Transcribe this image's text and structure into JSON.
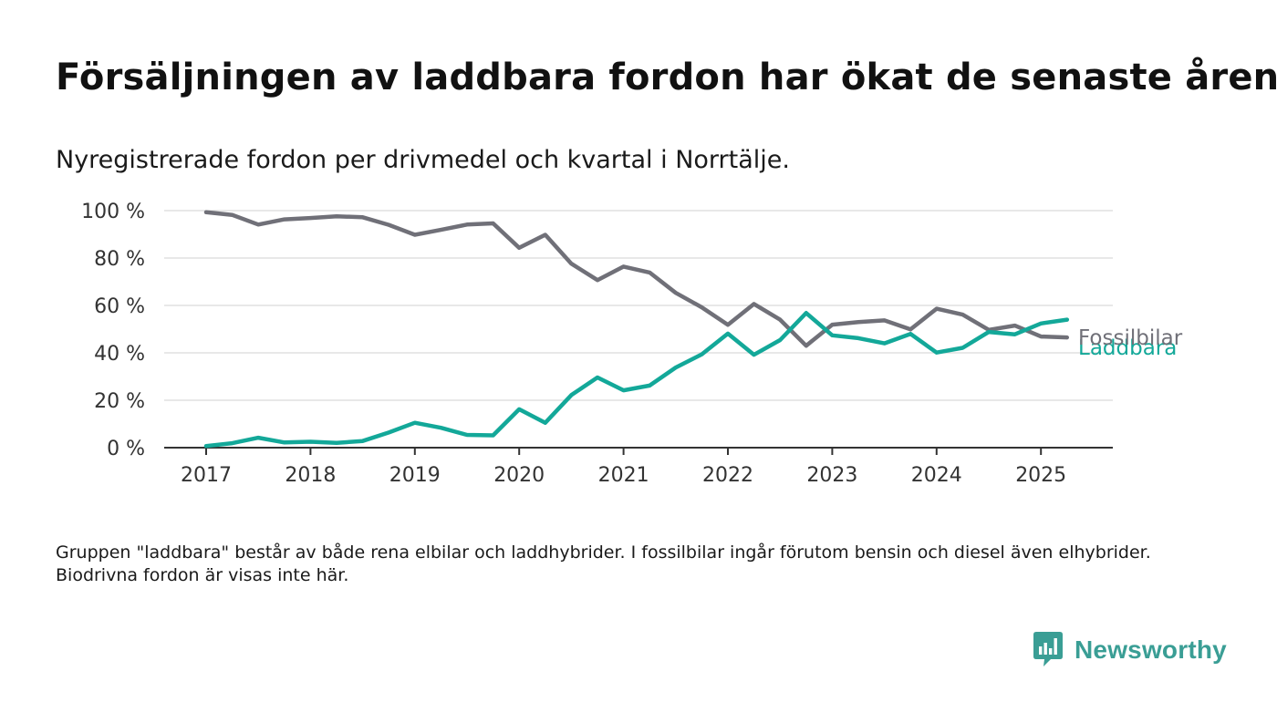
{
  "header": {
    "title": "Försäljningen av laddbara fordon har ökat de senaste åren",
    "subtitle": "Nyregistrerade fordon per drivmedel och kvartal i Norrtälje."
  },
  "footnote": "Gruppen \"laddbara\" består av både rena elbilar och laddhybrider. I fossilbilar ingår förutom bensin och diesel även elhybrider. Biodrivna fordon är visas inte här.",
  "brand": {
    "name": "Newsworthy",
    "icon": "newsworthy-chart-icon",
    "color": "#3a9e95"
  },
  "chart_data": {
    "type": "line",
    "x_tick_labels": [
      "2017",
      "2018",
      "2019",
      "2020",
      "2021",
      "2022",
      "2023",
      "2024",
      "2025"
    ],
    "y_tick_labels": [
      "0 %",
      "20 %",
      "40 %",
      "60 %",
      "80 %",
      "100 %"
    ],
    "ylim": [
      0,
      100
    ],
    "grid": true,
    "x": [
      "2017-Q1",
      "2017-Q2",
      "2017-Q3",
      "2017-Q4",
      "2018-Q1",
      "2018-Q2",
      "2018-Q3",
      "2018-Q4",
      "2019-Q1",
      "2019-Q2",
      "2019-Q3",
      "2019-Q4",
      "2020-Q1",
      "2020-Q2",
      "2020-Q3",
      "2020-Q4",
      "2021-Q1",
      "2021-Q2",
      "2021-Q3",
      "2021-Q4",
      "2022-Q1",
      "2022-Q2",
      "2022-Q3",
      "2022-Q4",
      "2023-Q1",
      "2023-Q2",
      "2023-Q3",
      "2023-Q4",
      "2024-Q1",
      "2024-Q2",
      "2024-Q3",
      "2024-Q4",
      "2025-Q1",
      "2025-Q2"
    ],
    "series": [
      {
        "name": "Fossilbilar",
        "color": "#707078",
        "values": [
          99.3,
          98.2,
          94.1,
          96.3,
          96.9,
          97.6,
          97.2,
          94.0,
          89.8,
          91.9,
          94.1,
          94.6,
          84.3,
          89.8,
          77.6,
          70.7,
          76.4,
          73.9,
          65.3,
          59.2,
          51.8,
          60.6,
          54.0,
          43.0,
          51.9,
          53.0,
          53.7,
          49.9,
          58.6,
          56.1,
          49.7,
          51.5,
          46.9,
          46.5
        ]
      },
      {
        "name": "Laddbara",
        "color": "#13a899",
        "values": [
          0.7,
          1.9,
          4.2,
          2.2,
          2.5,
          2.0,
          2.8,
          6.4,
          10.5,
          8.4,
          5.4,
          5.2,
          16.2,
          10.5,
          22.2,
          29.6,
          24.2,
          26.2,
          33.8,
          39.4,
          48.1,
          39.2,
          45.4,
          56.8,
          47.4,
          46.2,
          44.0,
          48.0,
          40.1,
          42.1,
          48.8,
          47.8,
          52.4,
          54.0
        ]
      }
    ]
  }
}
